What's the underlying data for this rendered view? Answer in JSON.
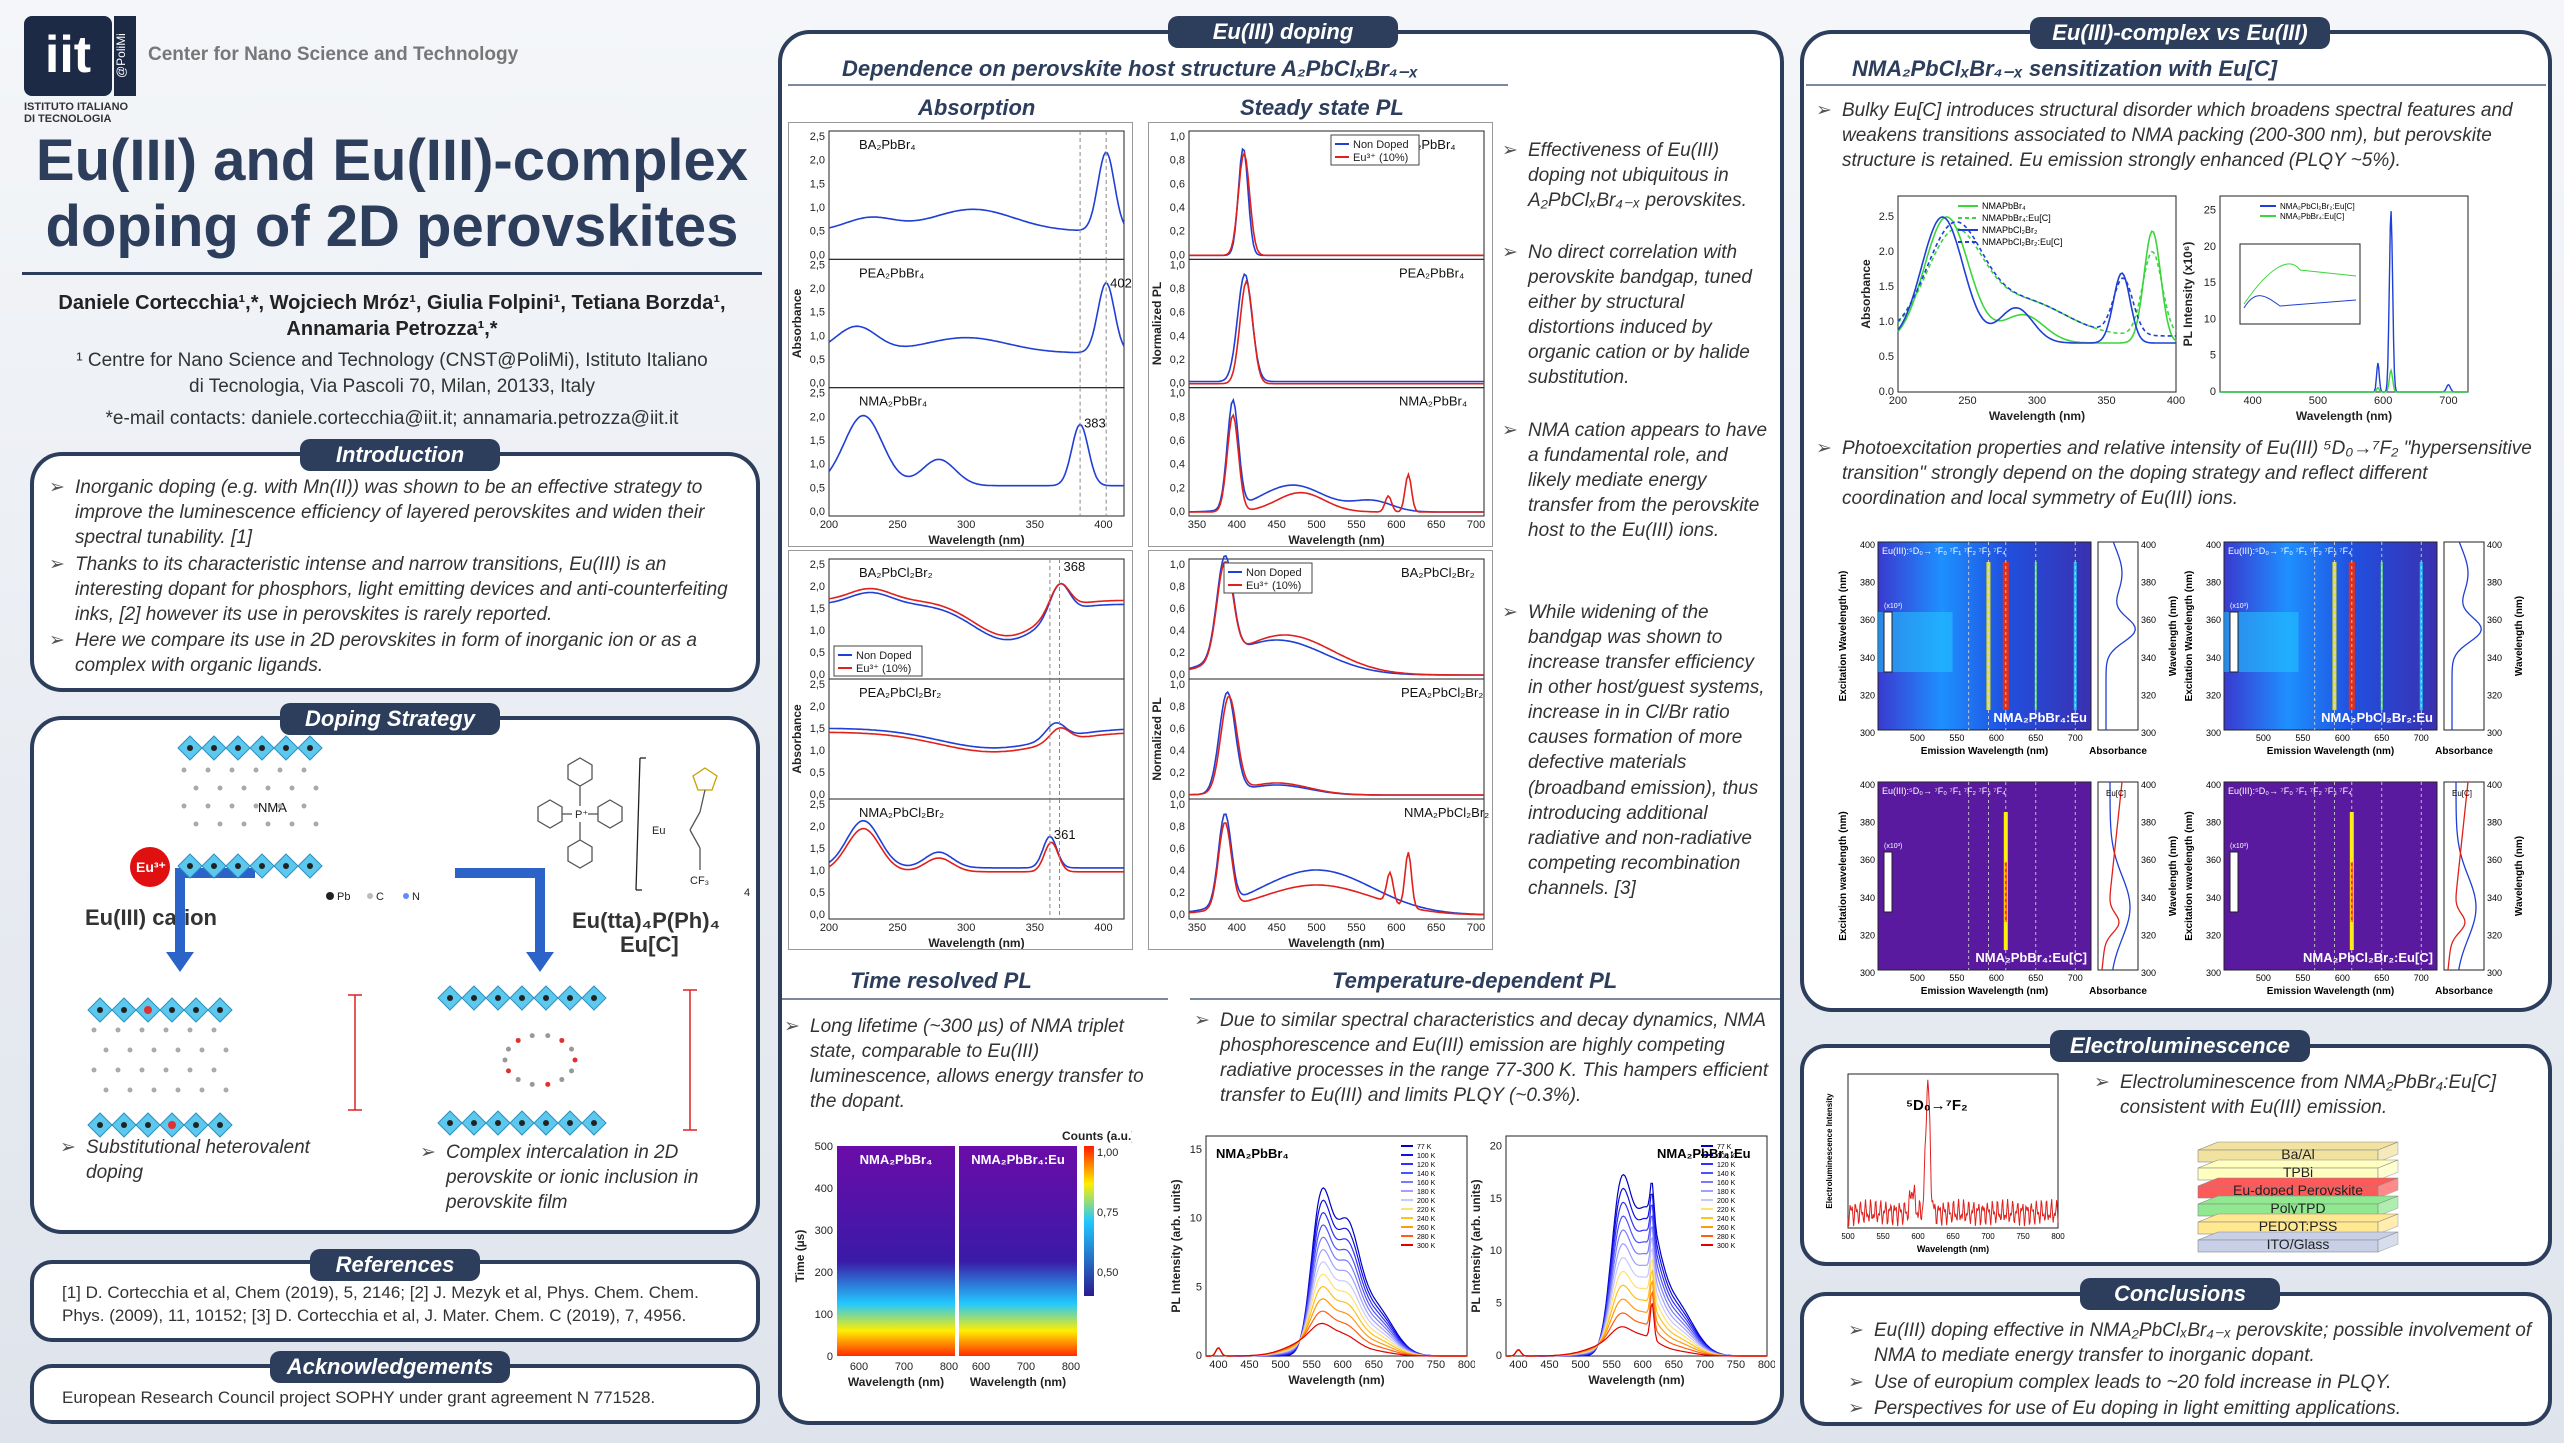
{
  "header": {
    "logo_main": "iit",
    "logo_side": "@PoliMi",
    "logo_sub1": "ISTITUTO ITALIANO",
    "logo_sub2": "DI TECNOLOGIA",
    "center_name": "Center for Nano Science and Technology",
    "title1": "Eu(III) and Eu(III)-complex",
    "title2": "doping of 2D perovskites",
    "authors1": "Daniele Cortecchia¹,*, Wojciech Mróz¹, Giulia Folpini¹, Tetiana Borzda¹,",
    "authors2": "Annamaria Petrozza¹,*",
    "affil1": "¹ Centre for Nano Science and Technology (CNST@PoliMi), Istituto Italiano",
    "affil2": "di Tecnologia, Via Pascoli 70, Milan, 20133, Italy",
    "email": "*e-mail contacts: daniele.cortecchia@iit.it; annamaria.petrozza@iit.it"
  },
  "intro": {
    "title": "Introduction",
    "bullets": [
      "Inorganic doping (e.g. with Mn(II)) was shown to be an effective strategy to improve the luminescence efficiency of layered perovskites and widen their spectral tunability. [1]",
      "Thanks to its characteristic intense and narrow transitions, Eu(III) is an interesting dopant for phosphors, light emitting devices and anti-counterfeiting inks, [2] however its use in perovskites is rarely reported.",
      "Here we compare its use in 2D perovskites in form of inorganic ion or as a complex with organic ligands."
    ]
  },
  "doping": {
    "title": "Doping Strategy",
    "nma": "NMA",
    "eu_badge": "Eu³⁺",
    "cation": "Eu(III) cation",
    "complex1": "Eu(tta)₄P(Ph)₄",
    "complex2": "Eu[C]",
    "legend_pb": "Pb",
    "legend_c": "C",
    "legend_n": "N",
    "cf3": "CF₃",
    "eu_small": "Eu",
    "p_small": "P⁺",
    "sub4": "4",
    "left_caption": "Substitutional heterovalent doping",
    "right_caption": "Complex intercalation in 2D perovskite or ionic inclusion in perovskite film"
  },
  "references": {
    "title": "References",
    "text": "[1] D. Cortecchia et al, Chem (2019), 5, 2146; [2] J. Mezyk et al, Phys. Chem. Chem. Phys. (2009), 11, 10152; [3] D. Cortecchia et al, J. Mater. Chem. C (2019), 7, 4956."
  },
  "ack": {
    "title": "Acknowledgements",
    "text": "European Research Council project SOPHY under grant agreement N 771528."
  },
  "eudoping": {
    "title": "Eu(III) doping",
    "subtitle": "Dependence on perovskite host structure A₂PbClₓBr₄₋ₓ",
    "absorption": "Absorption",
    "steady": "Steady state PL",
    "bullets": [
      "Effectiveness of Eu(III) doping not ubiquitous in A₂PbClₓBr₄₋ₓ perovskites.",
      "No direct correlation with perovskite bandgap, tuned either by structural distortions induced by organic cation or by halide substitution.",
      "NMA cation appears to have a fundamental role, and likely mediate energy transfer from the perovskite host to the Eu(III) ions.",
      "While widening of the bandgap was shown to increase transfer efficiency in other host/guest systems, increase in in Cl/Br ratio causes formation of more defective materials (broadband emission), thus introducing additional radiative and non-radiative competing recombination channels. [3]"
    ],
    "time_resolved": "Time resolved PL",
    "temp_dep": "Temperature-dependent PL",
    "tr_text": "Long lifetime (~300 µs) of NMA triplet state, comparable to Eu(III) luminescence, allows energy transfer to the dopant.",
    "td_text": "Due to similar spectral characteristics and decay dynamics, NMA phosphorescence and Eu(III) emission are highly competing radiative processes in the range 77-300 K. This hampers efficient transfer to Eu(III) and limits PLQY (~0.3%)."
  },
  "abs_chart_top": {
    "labels": [
      "BA₂PbBr₄",
      "PEA₂PbBr₄",
      "NMA₂PbBr₄"
    ],
    "peaks": [
      "402",
      "383"
    ],
    "xlabel": "Wavelength (nm)",
    "ylabel": "Absorbance",
    "xticks": [
      "200",
      "250",
      "300",
      "350",
      "400"
    ],
    "yticks": [
      "0,0",
      "0,5",
      "1,0",
      "1,5",
      "2,0",
      "2,5"
    ]
  },
  "pl_chart_top": {
    "labels": [
      "BA₂PbBr₄",
      "PEA₂PbBr₄",
      "NMA₂PbBr₄"
    ],
    "legend": [
      "Non Doped",
      "Eu³⁺ (10%)"
    ],
    "xlabel": "Wavelength (nm)",
    "ylabel": "Normalized PL",
    "xticks": [
      "350",
      "400",
      "450",
      "500",
      "550",
      "600",
      "650",
      "700"
    ],
    "yticks": [
      "0,0",
      "0,2",
      "0,4",
      "0,6",
      "0,8",
      "1,0"
    ]
  },
  "abs_chart_bot": {
    "labels": [
      "BA₂PbCl₂Br₂",
      "PEA₂PbCl₂Br₂",
      "NMA₂PbCl₂Br₂"
    ],
    "peaks": [
      "368",
      "361"
    ],
    "legend": [
      "Non Doped",
      "Eu³⁺ (10%)"
    ],
    "xlabel": "Wavelength (nm)",
    "ylabel": "Absorbance"
  },
  "pl_chart_bot": {
    "labels": [
      "BA₂PbCl₂Br₂",
      "PEA₂PbCl₂Br₂",
      "NMA₂PbCl₂Br₂"
    ],
    "legend": [
      "Non Doped",
      "Eu³⁺ (10%)"
    ],
    "xlabel": "Wavelength (nm)",
    "ylabel": "Normalized PL"
  },
  "trpl": {
    "left": "NMA₂PbBr₄",
    "right": "NMA₂PbBr₄:Eu",
    "colorbar": "Counts (a.u.)",
    "cb_ticks": [
      "1,00",
      "0,75",
      "0,50"
    ],
    "ylabel": "Time (µs)",
    "yticks": [
      "500",
      "400",
      "300",
      "200",
      "100",
      "0"
    ],
    "xlabel": "Wavelength (nm)",
    "xticks": [
      "600",
      "700",
      "800"
    ]
  },
  "tdpl": {
    "left": "NMA₂PbBr₄",
    "right": "NMA₂PbBr₄:Eu",
    "temps": [
      "77 K",
      "100 K",
      "120 K",
      "140 K",
      "160 K",
      "180 K",
      "200 K",
      "220 K",
      "240 K",
      "260 K",
      "280 K",
      "300 K"
    ],
    "xlabel": "Wavelength (nm)",
    "ylabel": "PL Intensity (arb. units)",
    "xticks": [
      "400",
      "450",
      "500",
      "550",
      "600",
      "650",
      "700",
      "750",
      "800"
    ],
    "yticks_l": [
      "0",
      "5",
      "10",
      "15"
    ],
    "yticks_r": [
      "0",
      "5",
      "10",
      "15",
      "20"
    ]
  },
  "complex": {
    "title": "Eu(III)-complex vs Eu(III)",
    "subtitle": "NMA₂PbClₓBr₄₋ₓ sensitization with Eu[C]",
    "bullet1": "Bulky Eu[C] introduces structural disorder which broadens spectral features and weakens transitions associated to NMA packing (200-300 nm), but perovskite structure is retained. Eu emission strongly enhanced (PLQY ~5%).",
    "bullet2": "Photoexcitation properties and relative intensity of Eu(III) ⁵D₀→⁷F₂ \"hypersensitive transition\" strongly depend on the doping strategy and reflect different coordination and local symmetry of Eu(III) ions.",
    "abs_legend": [
      "NMAPbBr₄",
      "NMAPbBr₄:Eu[C]",
      "NMAPbCl₂Br₂",
      "NMAPbCl₂Br₂:Eu[C]"
    ],
    "abs_xlabel": "Wavelength (nm)",
    "abs_ylabel": "Absorbance",
    "abs_xticks": [
      "200",
      "250",
      "300",
      "350",
      "400"
    ],
    "abs_yticks": [
      "0.0",
      "0.5",
      "1.0",
      "1.5",
      "2.0",
      "2.5"
    ],
    "pl_legend": [
      "NMA₂PbCl₂Br₂:Eu[C]",
      "NMA₂PbBr₄:Eu[C]"
    ],
    "pl_xlabel": "Wavelength (nm)",
    "pl_ylabel": "PL Intensity (x10⁶)",
    "pl_xticks": [
      "400",
      "500",
      "600",
      "700"
    ],
    "pl_yticks": [
      "0",
      "5",
      "10",
      "15",
      "20",
      "25"
    ],
    "maps": [
      {
        "label": "NMA₂PbBr₄:Eu",
        "trans": "Eu(III):⁵D₀→ ⁷F₀ ⁷F₁ ⁷F₂  ⁷F₃  ⁷F₄"
      },
      {
        "label": "NMA₂PbCl₂Br₂:Eu",
        "trans": "Eu(III):⁵D₀→ ⁷F₀ ⁷F₁ ⁷F₂  ⁷F₃  ⁷F₄"
      },
      {
        "label": "NMA₂PbBr₄:Eu[C]",
        "trans": "Eu(III):⁵D₀→ ⁷F₀ ⁷F₁ ⁷F₂  ⁷F₃  ⁷F₄"
      },
      {
        "label": "NMA₂PbCl₂Br₂:Eu[C]",
        "trans": "Eu(III):⁵D₀→ ⁷F₀ ⁷F₁ ⁷F₂  ⁷F₃  ⁷F₄"
      }
    ],
    "map_xlabel": "Emission Wavelength (nm)",
    "map_ylabel": "Excitation Wavelength (nm)",
    "map_ylabel2": "Excitation wavelength (nm)",
    "side_xlabel": "Absorbance",
    "side_ylabel": "Wavelength (nm)",
    "side_legend": "Eu[C]",
    "map_xticks": [
      "500",
      "550",
      "600",
      "650",
      "700"
    ],
    "map_yticks": [
      "400",
      "380",
      "360",
      "340",
      "320",
      "300"
    ],
    "cb_label": "(x10³)"
  },
  "el": {
    "title": "Electroluminescence",
    "transition": "⁵D₀→⁷F₂",
    "text": "Electroluminescence from NMA₂PbBr₄:Eu[C] consistent with Eu(III) emission.",
    "xlabel": "Wavelength (nm)",
    "ylabel": "Electroluminescence Intensity",
    "xticks": [
      "500",
      "550",
      "600",
      "650",
      "700",
      "750",
      "800"
    ],
    "layers": [
      "Ba/Al",
      "TPBi",
      "Eu-doped Perovskite",
      "PolyTPD",
      "PEDOT:PSS",
      "ITO/Glass"
    ]
  },
  "conclusions": {
    "title": "Conclusions",
    "bullets": [
      "Eu(III) doping effective in NMA₂PbClₓBr₄₋ₓ perovskite; possible involvement of NMA to mediate energy transfer to inorganic dopant.",
      "Use of europium complex leads to ~20 fold increase in PLQY.",
      "Perspectives for use of Eu doping in light emitting applications."
    ]
  },
  "colors": {
    "navy": "#2c3e5c",
    "blue": "#1f3fd6",
    "red": "#e0201c",
    "green": "#3cd63c"
  }
}
